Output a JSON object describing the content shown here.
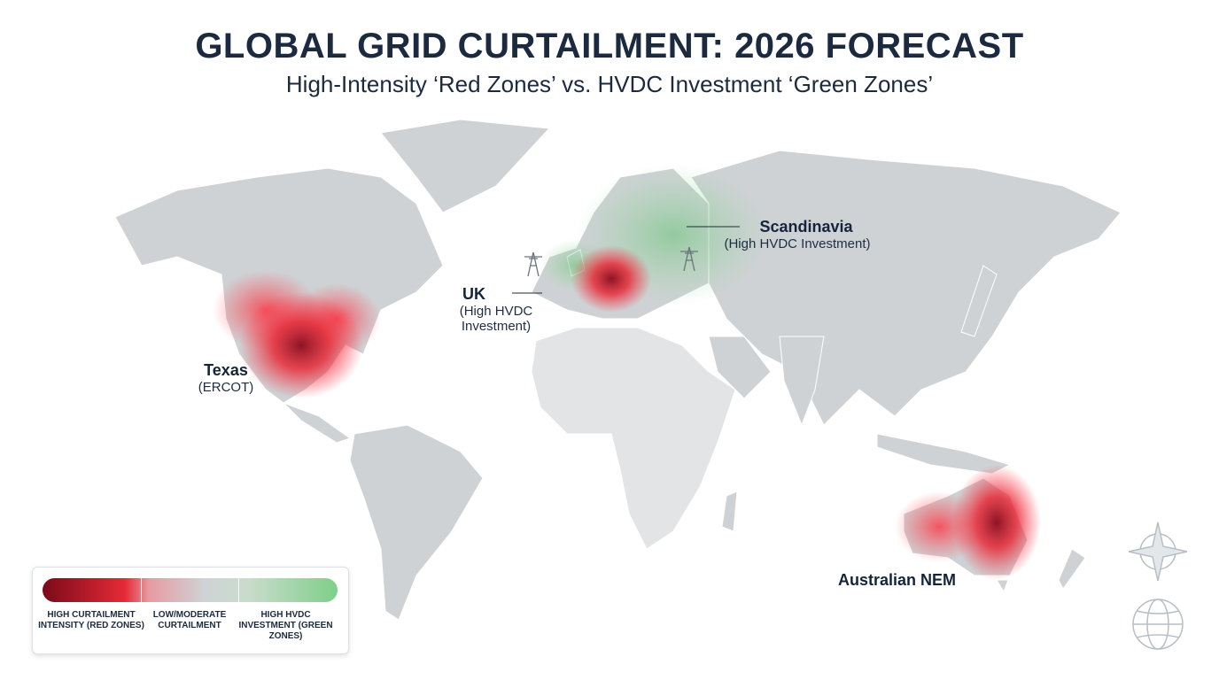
{
  "header": {
    "title": "GLOBAL GRID CURTAILMENT: 2026 FORECAST",
    "subtitle": "High-Intensity ‘Red Zones’ vs. HVDC Investment ‘Green Zones’"
  },
  "regions": [
    {
      "name": "Texas",
      "note": "(ERCOT)"
    },
    {
      "name": "UK",
      "note": "(High HVDC Investment)"
    },
    {
      "name": "Scandinavia",
      "note": "(High HVDC Investment)"
    },
    {
      "name": "Australian NEM"
    }
  ],
  "legend": {
    "items": [
      "HIGH CURTAILMENT INTENSITY (RED ZONES)",
      "LOW/MODERATE CURTAILMENT",
      "HIGH HVDC INVESTMENT (GREEN ZONES)"
    ]
  }
}
